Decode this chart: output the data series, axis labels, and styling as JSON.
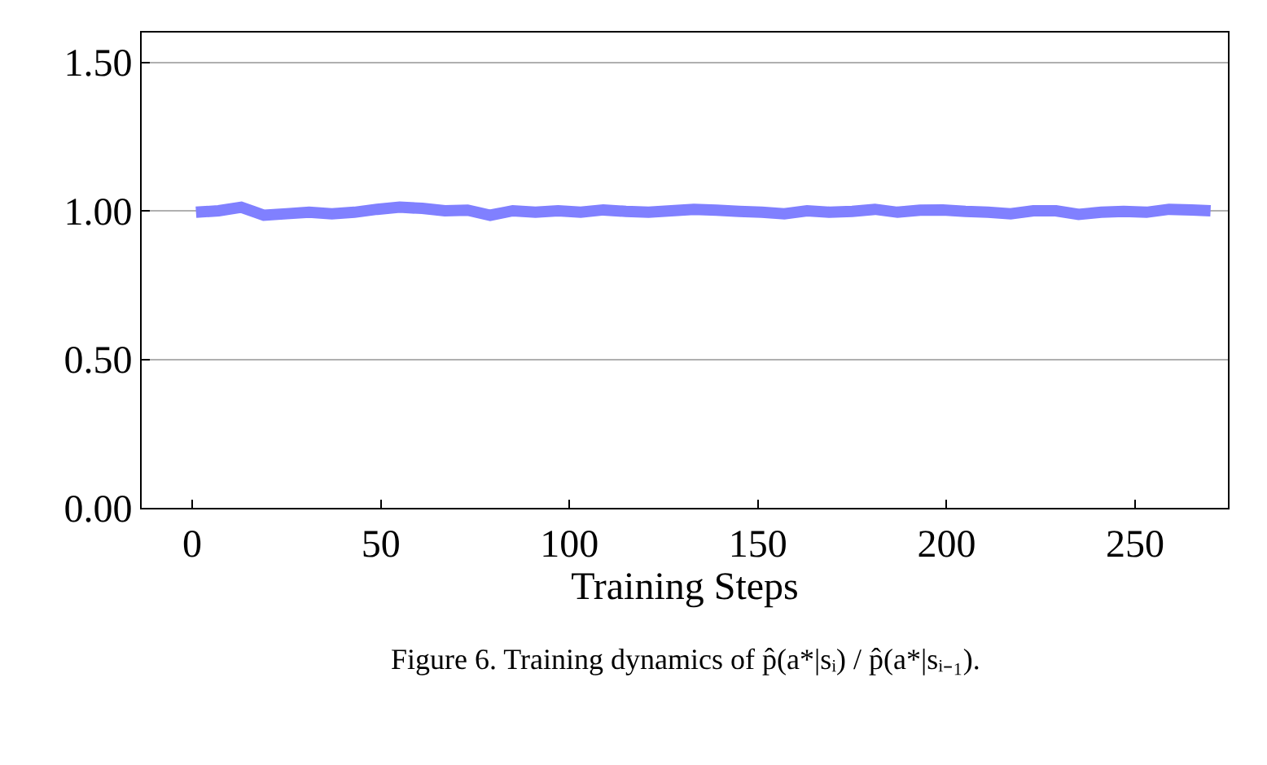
{
  "chart_data": {
    "type": "line",
    "xlabel": "Training Steps",
    "x": [
      1,
      7,
      13,
      19,
      25,
      31,
      37,
      43,
      49,
      55,
      61,
      67,
      73,
      79,
      85,
      91,
      97,
      103,
      109,
      115,
      121,
      127,
      133,
      139,
      145,
      151,
      157,
      163,
      169,
      175,
      181,
      187,
      193,
      199,
      205,
      211,
      217,
      223,
      229,
      235,
      241,
      247,
      253,
      259,
      265,
      270
    ],
    "series": [
      {
        "color": "#8080ff",
        "values": [
          0.995,
          1.0,
          1.012,
          0.985,
          0.99,
          0.995,
          0.99,
          0.995,
          1.005,
          1.012,
          1.008,
          1.0,
          1.002,
          0.985,
          1.0,
          0.995,
          1.0,
          0.995,
          1.003,
          0.998,
          0.995,
          1.0,
          1.005,
          1.002,
          0.998,
          0.995,
          0.99,
          1.0,
          0.995,
          0.998,
          1.005,
          0.995,
          1.002,
          1.003,
          0.998,
          0.995,
          0.99,
          1.0,
          1.0,
          0.988,
          0.995,
          0.998,
          0.995,
          1.005,
          1.003,
          1.0
        ]
      }
    ],
    "xlim": [
      -13.4,
      274.6
    ],
    "ylim": [
      0,
      1.6
    ],
    "xticks": [
      0,
      50,
      100,
      150,
      200,
      250
    ],
    "yticks": [
      {
        "value": 0,
        "label": "0.00"
      },
      {
        "value": 0.5,
        "label": "0.50"
      },
      {
        "value": 1,
        "label": "1.00"
      },
      {
        "value": 1.5,
        "label": "1.50"
      }
    ],
    "grid": "y",
    "marker": "none",
    "line_style": "solid",
    "annotations": [
      "Figure 6. Training dynamics of p̂(a*|sᵢ) / p̂(a*|sᵢ₋₁)."
    ]
  }
}
